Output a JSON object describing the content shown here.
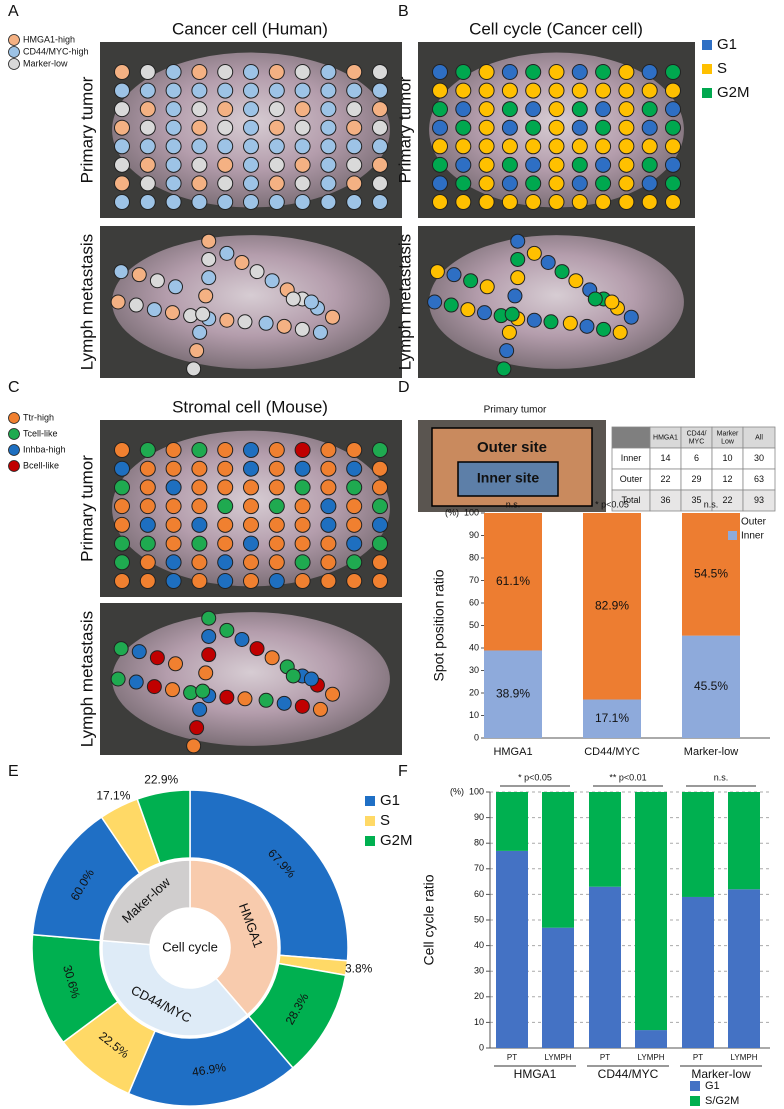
{
  "letters": [
    "A",
    "B",
    "C",
    "D",
    "E",
    "F"
  ],
  "panels": [
    {
      "title": "Cancer cell (Human)",
      "row_labels": [
        "Primary tumor",
        "Lymph metastasis"
      ],
      "legend": [
        {
          "name": "HMGA1-high",
          "color": "#f4b183"
        },
        {
          "name": "CD44/MYC-high",
          "color": "#9dc3e6"
        },
        {
          "name": "Marker-low",
          "color": "#d9d9d9"
        }
      ]
    },
    {
      "title": "Cell cycle (Cancer cell)",
      "row_labels": [
        "Primary tumor",
        "Lymph metastasis"
      ],
      "legend": [
        {
          "name": "G1",
          "color": "#2e6fc4"
        },
        {
          "name": "S",
          "color": "#ffc000"
        },
        {
          "name": "G2M",
          "color": "#00a84f"
        }
      ]
    },
    {
      "title": "Stromal cell (Mouse)",
      "row_labels": [
        "Primary tumor",
        "Lymph metastasis"
      ],
      "legend": [
        {
          "name": "Ttr-high",
          "color": "#f08030"
        },
        {
          "name": "Tcell-like",
          "color": "#1faa50"
        },
        {
          "name": "Inhba-high",
          "color": "#1e6fc0"
        },
        {
          "name": "Bcell-like",
          "color": "#c00000"
        }
      ]
    }
  ],
  "region_map": {
    "title": "Primary tumor",
    "outer_label": "Outer site",
    "inner_label": "Inner site"
  },
  "table": {
    "header": [
      "HMGA1",
      "CD44/ MYC",
      "Marker Low",
      "All"
    ],
    "rows": [
      [
        "Inner",
        "14",
        "6",
        "10",
        "30"
      ],
      [
        "Outer",
        "22",
        "29",
        "12",
        "63"
      ],
      [
        "Total",
        "36",
        "35",
        "22",
        "93"
      ]
    ]
  },
  "chart_data": [
    {
      "type": "bar",
      "stacked": true,
      "y_title": "Spot position ratio",
      "y_unit": "(%)",
      "categories": [
        "HMGA1",
        "CD44/MYC",
        "Marker-low"
      ],
      "annotations": [
        "n.s.",
        "* p<0.05",
        "n.s."
      ],
      "series": [
        {
          "name": "Inner",
          "color": "#8eaadb",
          "values": [
            38.9,
            17.1,
            45.5
          ],
          "value_labels": [
            "38.9%",
            "17.1%",
            "45.5%"
          ]
        },
        {
          "name": "Outer",
          "color": "#ed7d31",
          "values": [
            61.1,
            82.9,
            54.5
          ],
          "value_labels": [
            "61.1%",
            "82.9%",
            "54.5%"
          ]
        }
      ],
      "ylim": [
        0,
        100
      ],
      "yticks": [
        0,
        10,
        20,
        30,
        40,
        50,
        60,
        70,
        80,
        90,
        100
      ],
      "grid": false
    },
    {
      "type": "donut",
      "center_label": "Cell cycle",
      "categories": [
        "HMGA1",
        "CD44/MYC",
        "Maker-low"
      ],
      "values": [
        36,
        35,
        22
      ],
      "colors": [
        "#f8cbad",
        "#deebf7",
        "#d0cece"
      ],
      "series": [
        {
          "name": "G1",
          "color": "#1f6fc5",
          "values": [
            67.9,
            46.9,
            60.0
          ],
          "value_labels": [
            "67.9%",
            "46.9%",
            "60.0%"
          ]
        },
        {
          "name": "S",
          "color": "#ffd966",
          "values": [
            3.8,
            22.5,
            17.1
          ],
          "value_labels": [
            "3.8%",
            "22.5%",
            "17.1%"
          ]
        },
        {
          "name": "G2M",
          "color": "#00b050",
          "values": [
            28.3,
            30.6,
            22.9
          ],
          "value_labels": [
            "28.3%",
            "30.6%",
            "22.9%"
          ]
        }
      ]
    },
    {
      "type": "grouped_bar",
      "stacked": true,
      "y_title": "Cell cycle ratio",
      "y_unit": "(%)",
      "categories": [
        "PT",
        "LYMPH",
        "PT",
        "LYMPH",
        "PT",
        "LYMPH"
      ],
      "groups": [
        "HMGA1",
        "CD44/MYC",
        "Marker-low"
      ],
      "annotations": [
        "* p<0.05",
        "** p<0.01",
        "n.s."
      ],
      "series": [
        {
          "name": "G1",
          "color": "#4472c4",
          "values": [
            77,
            47,
            63,
            7,
            59,
            62
          ]
        },
        {
          "name": "S/G2M",
          "color": "#00b050",
          "values": [
            23,
            53,
            37,
            93,
            41,
            38
          ]
        }
      ],
      "ylim": [
        0,
        100
      ],
      "yticks": [
        0,
        10,
        20,
        30,
        40,
        50,
        60,
        70,
        80,
        90,
        100
      ],
      "grid": true
    }
  ]
}
